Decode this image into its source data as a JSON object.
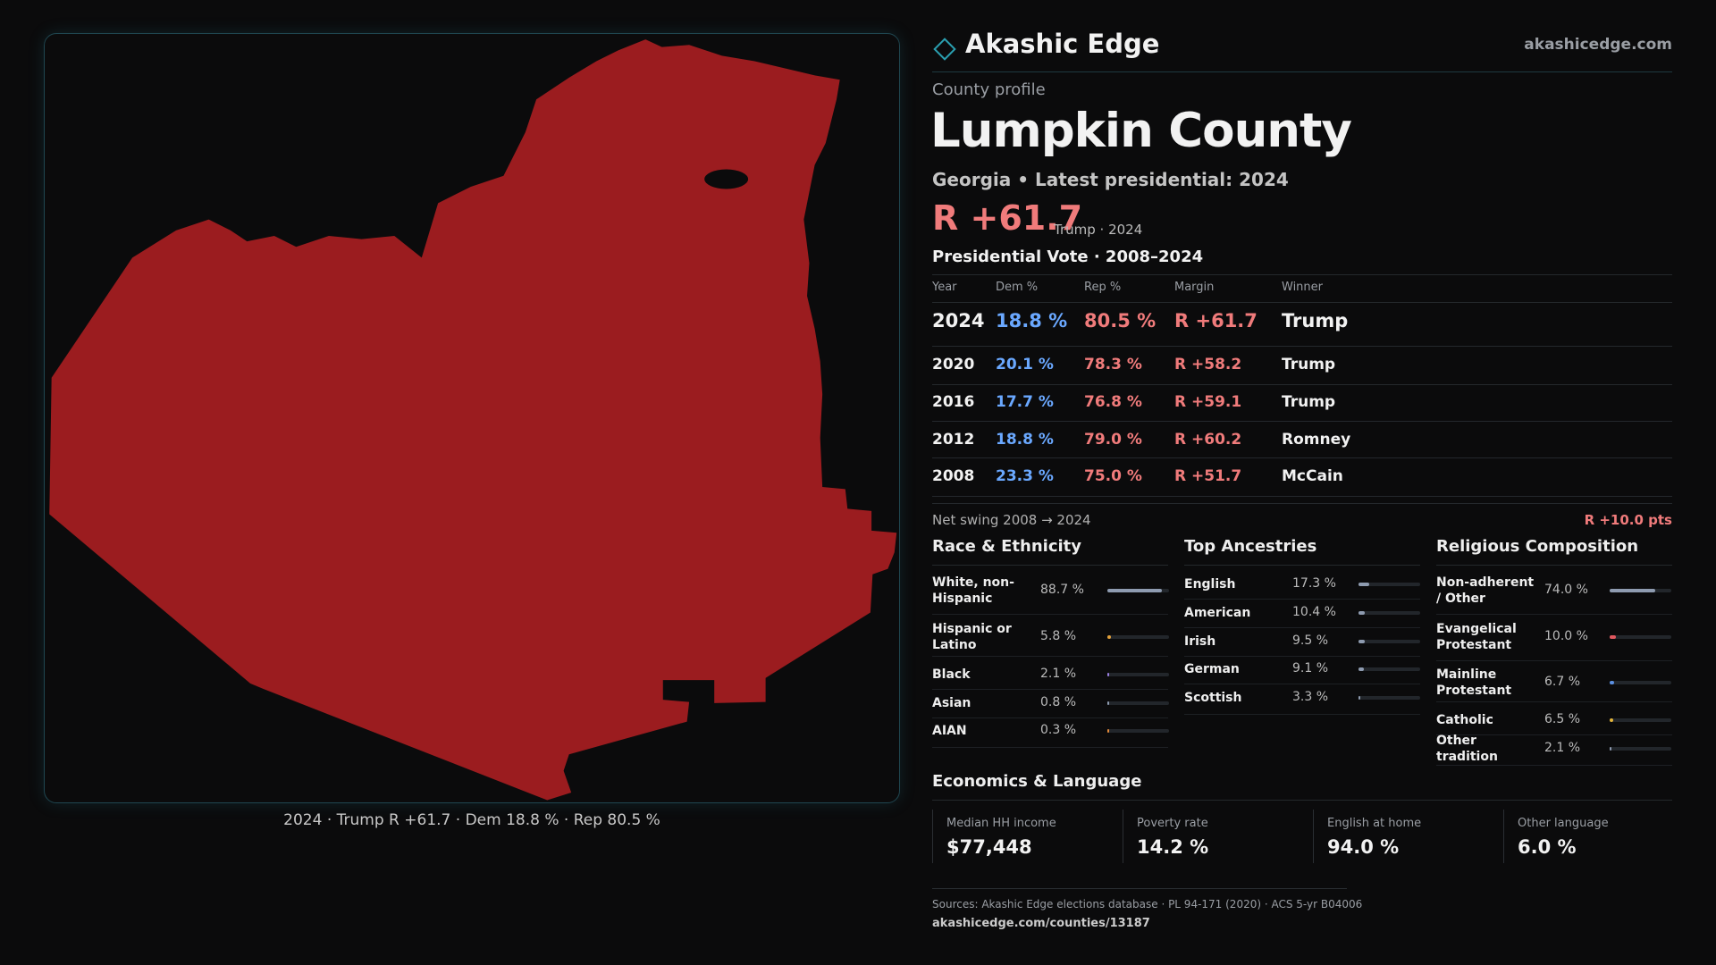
{
  "header": {
    "brand": "Akashic Edge",
    "site": "akashicedge.com"
  },
  "profile": {
    "eyebrow": "County profile",
    "title": "Lumpkin County",
    "subtitle": "Georgia • Latest presidential: 2024",
    "margin": "R +61.7",
    "margin_note": "Trump · 2024"
  },
  "map": {
    "caption": "2024 · Trump R +61.7 · Dem 18.8 % · Rep 80.5 %"
  },
  "vote_table": {
    "title": "Presidential Vote · 2008–2024",
    "columns": [
      "Year",
      "Dem %",
      "Rep %",
      "Margin",
      "Winner"
    ],
    "rows": [
      [
        "2024",
        "18.8 %",
        "80.5 %",
        "R +61.7",
        "Trump"
      ],
      [
        "2020",
        "20.1 %",
        "78.3 %",
        "R +58.2",
        "Trump"
      ],
      [
        "2016",
        "17.7 %",
        "76.8 %",
        "R +59.1",
        "Trump"
      ],
      [
        "2012",
        "18.8 %",
        "79.0 %",
        "R +60.2",
        "Romney"
      ],
      [
        "2008",
        "23.3 %",
        "75.0 %",
        "R +51.7",
        "McCain"
      ]
    ]
  },
  "swing": {
    "label": "Net swing 2008 → 2024",
    "value": "R +10.0 pts"
  },
  "race": {
    "title": "Race & Ethnicity",
    "rows": [
      {
        "name": "White, non-Hispanic",
        "value": 88.7,
        "label": "88.7 %",
        "color": "#8e9bb0"
      },
      {
        "name": "Hispanic or Latino",
        "value": 5.8,
        "label": "5.8 %",
        "color": "#e3a13a"
      },
      {
        "name": "Black",
        "value": 2.1,
        "label": "2.1 %",
        "color": "#9a7fe0"
      },
      {
        "name": "Asian",
        "value": 0.8,
        "label": "0.8 %",
        "color": "#8e9bb0"
      },
      {
        "name": "AIAN",
        "value": 0.3,
        "label": "0.3 %",
        "color": "#e38a3a"
      }
    ]
  },
  "ancestry": {
    "title": "Top Ancestries",
    "rows": [
      {
        "name": "English",
        "value": 17.3,
        "label": "17.3 %",
        "color": "#8e9bb0"
      },
      {
        "name": "American",
        "value": 10.4,
        "label": "10.4 %",
        "color": "#8e9bb0"
      },
      {
        "name": "Irish",
        "value": 9.5,
        "label": "9.5 %",
        "color": "#8e9bb0"
      },
      {
        "name": "German",
        "value": 9.1,
        "label": "9.1 %",
        "color": "#8e9bb0"
      },
      {
        "name": "Scottish",
        "value": 3.3,
        "label": "3.3 %",
        "color": "#8e9bb0"
      }
    ]
  },
  "religion": {
    "title": "Religious Composition",
    "rows": [
      {
        "name": "Non-adherent / Other",
        "value": 74.0,
        "label": "74.0 %",
        "color": "#8e9bb0"
      },
      {
        "name": "Evangelical Protestant",
        "value": 10.0,
        "label": "10.0 %",
        "color": "#e0585f"
      },
      {
        "name": "Mainline Protestant",
        "value": 6.7,
        "label": "6.7 %",
        "color": "#5b8fe0"
      },
      {
        "name": "Catholic",
        "value": 6.5,
        "label": "6.5 %",
        "color": "#e3b43a"
      },
      {
        "name": "Other tradition",
        "value": 2.1,
        "label": "2.1 %",
        "color": "#8e9bb0"
      }
    ]
  },
  "economics": {
    "title": "Economics & Language",
    "cards": [
      {
        "label": "Median HH income",
        "value": "$77,448"
      },
      {
        "label": "Poverty rate",
        "value": "14.2 %"
      },
      {
        "label": "English at home",
        "value": "94.0 %"
      },
      {
        "label": "Other language",
        "value": "6.0 %"
      }
    ]
  },
  "sources": {
    "text": "Sources: Akashic Edge elections database · PL 94-171 (2020) · ACS 5-yr B04006",
    "url": "akashicedge.com/counties/13187"
  }
}
